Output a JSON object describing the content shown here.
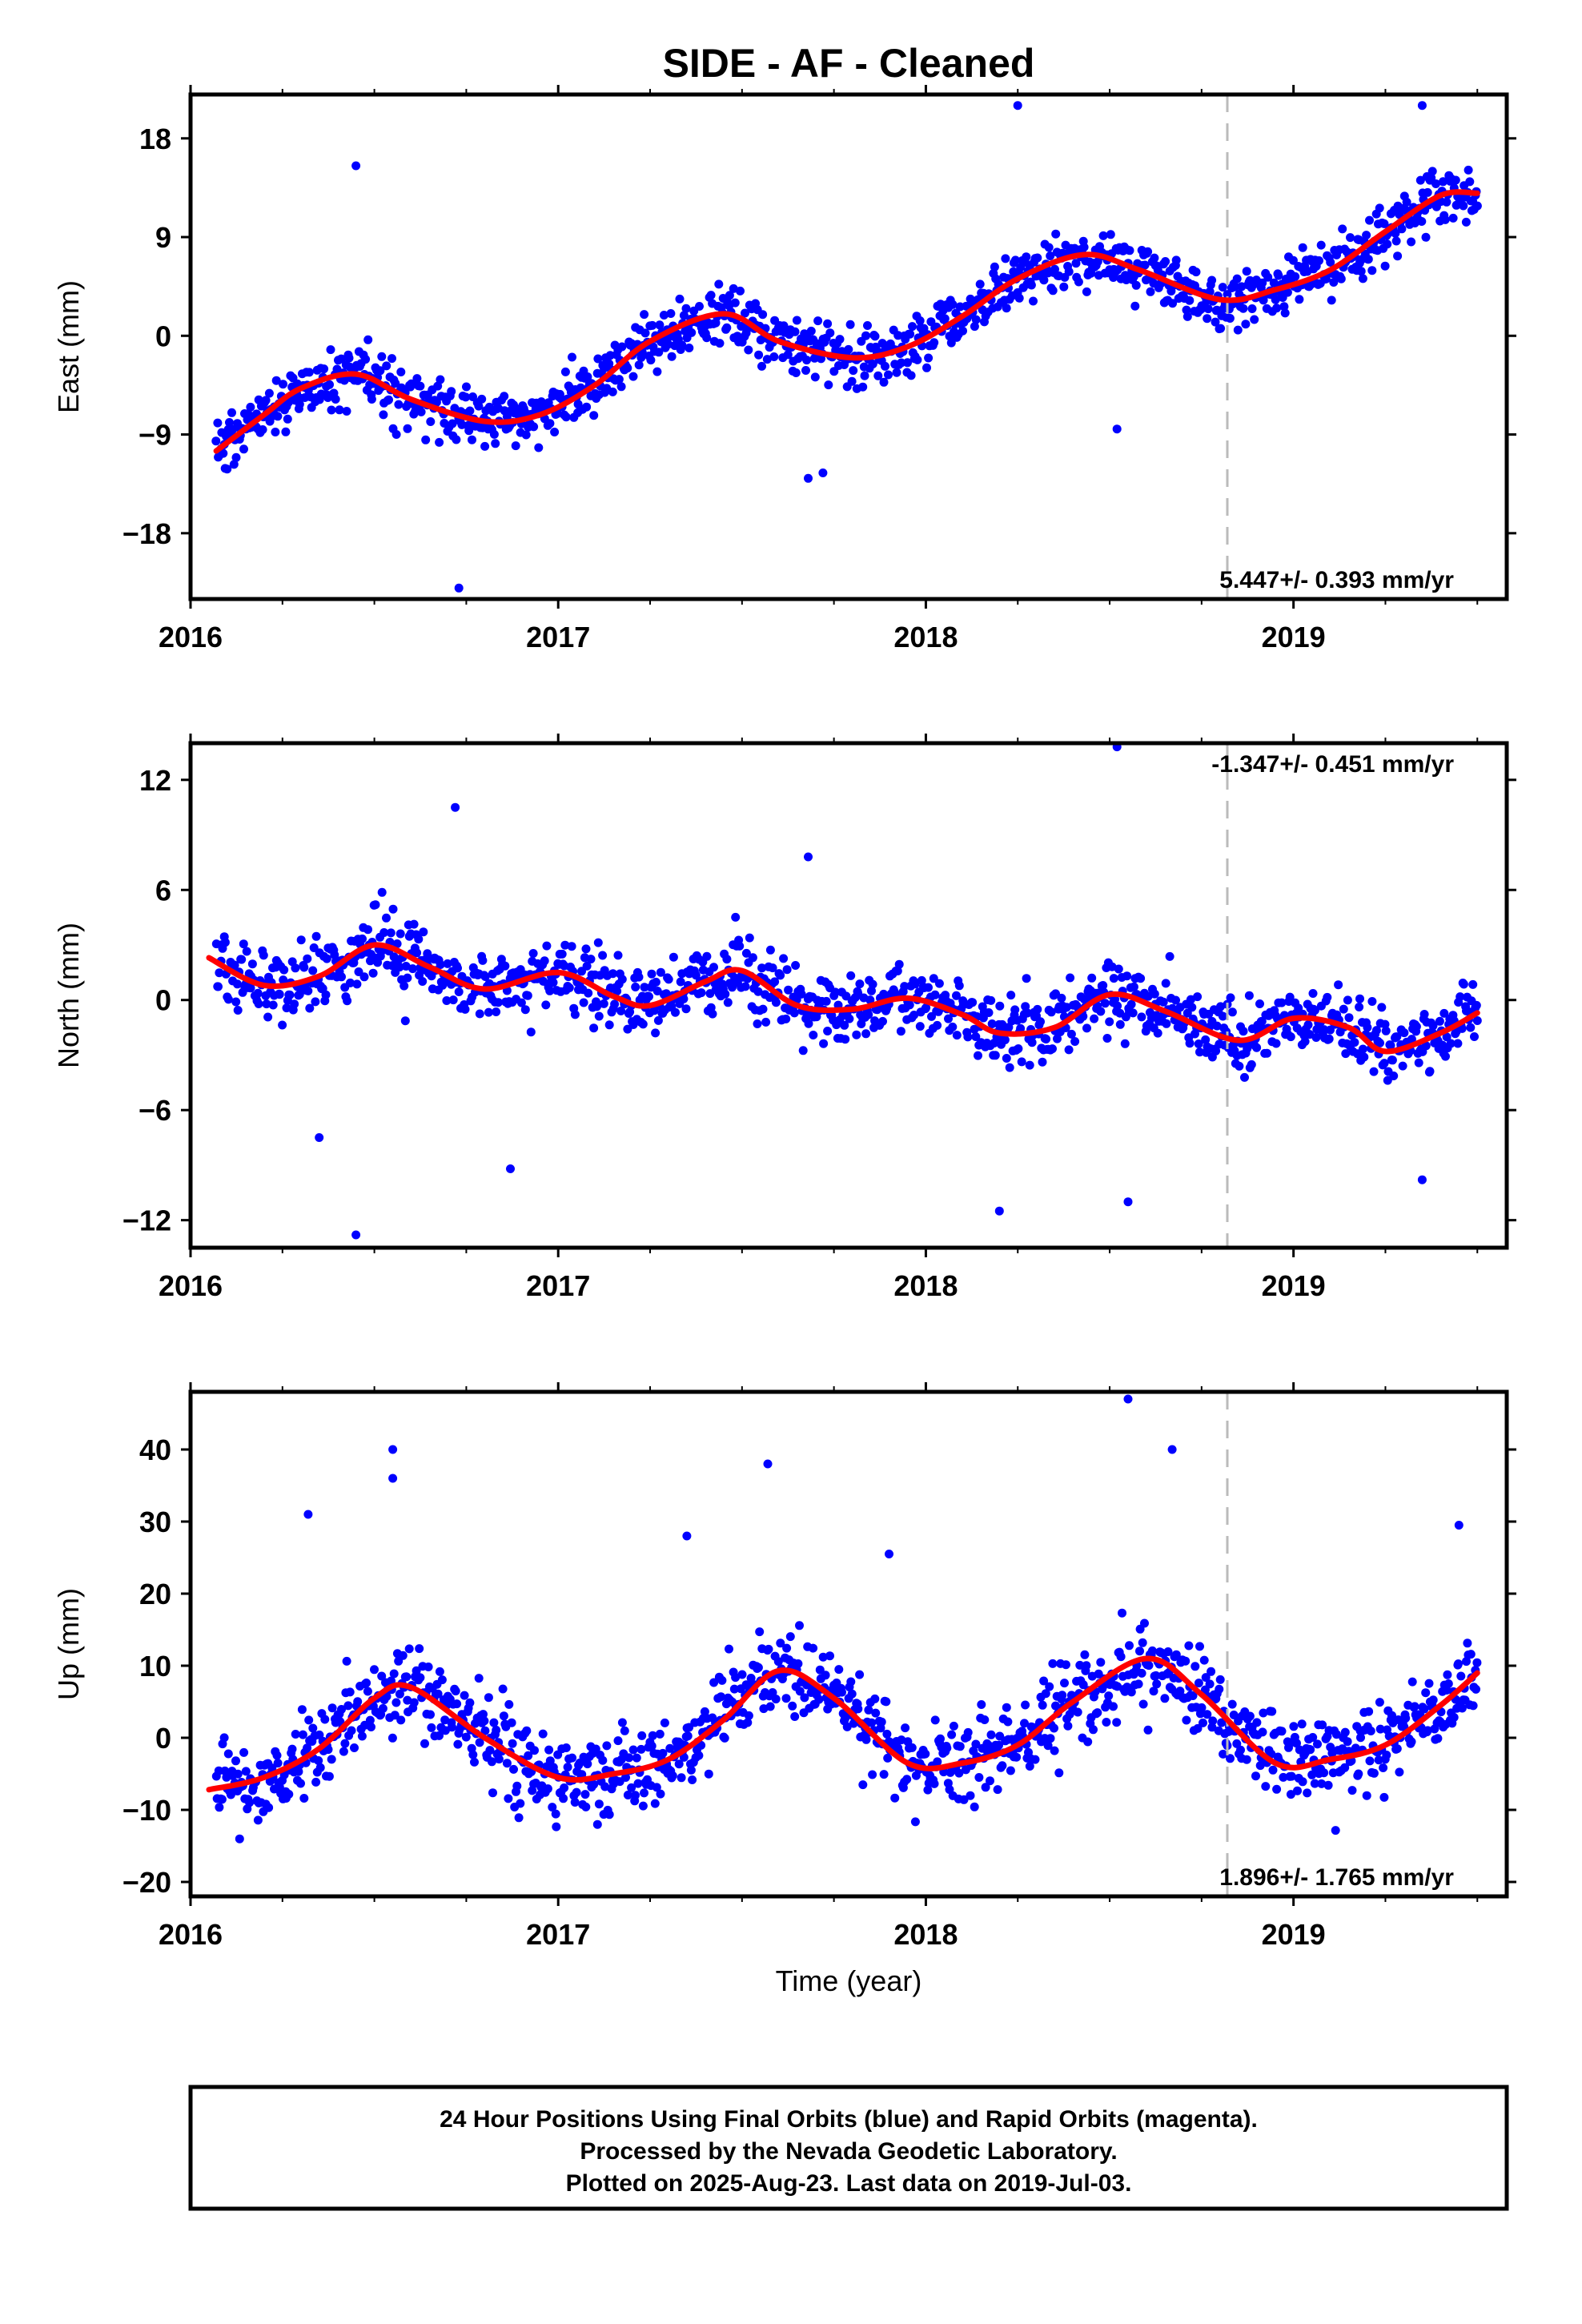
{
  "figure": {
    "title": "SIDE  - AF - Cleaned",
    "xlabel": "Time (year)",
    "x_ticks": [
      2016,
      2017,
      2018,
      2019
    ],
    "x_tick_labels": [
      "2016",
      "2017",
      "2018",
      "2019"
    ],
    "xlim": [
      2016.0,
      2019.58
    ],
    "marker_line_x": 2018.82,
    "colors": {
      "final": "#0000ff",
      "rapid": "#ff00ff",
      "fit": "#ff0000",
      "marker": "#bbbbbb"
    }
  },
  "chart_data": [
    {
      "type": "scatter",
      "name": "east",
      "ylabel": "East (mm)",
      "ylim": [
        -24,
        22
      ],
      "y_ticks": [
        -18,
        -9,
        0,
        9,
        18
      ],
      "y_tick_labels": [
        "−18",
        "−9",
        "0",
        "9",
        "18"
      ],
      "rate_text": "5.447+/- 0.393 mm/yr",
      "rate_position": "bottom-right",
      "fit": {
        "x": [
          2016.07,
          2016.2,
          2016.3,
          2016.45,
          2016.6,
          2016.8,
          2016.95,
          2017.1,
          2017.25,
          2017.45,
          2017.6,
          2017.8,
          2017.95,
          2018.1,
          2018.25,
          2018.43,
          2018.58,
          2018.8,
          2018.95,
          2019.1,
          2019.25,
          2019.4,
          2019.5
        ],
        "y": [
          -10.5,
          -7.2,
          -4.8,
          -3.5,
          -5.8,
          -7.8,
          -7.2,
          -4.5,
          -0.5,
          2.0,
          -0.5,
          -2.0,
          -1.0,
          1.8,
          5.2,
          7.4,
          6.0,
          3.3,
          4.2,
          6.0,
          9.5,
          12.8,
          13.0
        ]
      },
      "outliers": {
        "x": [
          2016.45,
          2016.73,
          2017.68,
          2017.72,
          2018.25,
          2018.52,
          2019.35
        ],
        "y": [
          15.5,
          -23,
          -13,
          -12.5,
          21,
          -8.5,
          21
        ]
      }
    },
    {
      "type": "scatter",
      "name": "north",
      "ylabel": "North (mm)",
      "ylim": [
        -13.5,
        14
      ],
      "y_ticks": [
        -12,
        -6,
        0,
        6,
        12
      ],
      "y_tick_labels": [
        "−12",
        "−6",
        "0",
        "6",
        "12"
      ],
      "rate_text": "-1.347+/- 0.451 mm/yr",
      "rate_position": "top-right",
      "fit": {
        "x": [
          2016.05,
          2016.2,
          2016.35,
          2016.5,
          2016.65,
          2016.8,
          2017.0,
          2017.15,
          2017.25,
          2017.4,
          2017.5,
          2017.65,
          2017.8,
          2017.95,
          2018.1,
          2018.2,
          2018.35,
          2018.5,
          2018.65,
          2018.85,
          2019.0,
          2019.15,
          2019.25,
          2019.4,
          2019.5
        ],
        "y": [
          2.3,
          0.8,
          1.3,
          3.0,
          1.8,
          0.6,
          1.5,
          0.2,
          -0.3,
          1.0,
          1.6,
          -0.3,
          -0.5,
          0.1,
          -0.8,
          -1.8,
          -1.5,
          0.3,
          -0.6,
          -2.2,
          -1.0,
          -1.5,
          -2.8,
          -1.8,
          -0.7
        ]
      },
      "outliers": {
        "x": [
          2016.35,
          2016.45,
          2016.72,
          2016.87,
          2017.68,
          2018.2,
          2018.52,
          2018.55,
          2019.35
        ],
        "y": [
          -7.5,
          -12.8,
          10.5,
          -9.2,
          7.8,
          -11.5,
          13.8,
          -11,
          -9.8
        ]
      }
    },
    {
      "type": "scatter",
      "name": "up",
      "ylabel": "Up (mm)",
      "ylim": [
        -22,
        48
      ],
      "y_ticks": [
        -20,
        -10,
        0,
        10,
        20,
        30,
        40
      ],
      "y_tick_labels": [
        "−20",
        "−10",
        "0",
        "10",
        "20",
        "30",
        "40"
      ],
      "rate_text": "1.896+/- 1.765 mm/yr",
      "rate_position": "bottom-right",
      "fit": {
        "x": [
          2016.05,
          2016.2,
          2016.35,
          2016.5,
          2016.6,
          2016.8,
          2017.0,
          2017.15,
          2017.3,
          2017.45,
          2017.6,
          2017.75,
          2017.95,
          2018.1,
          2018.25,
          2018.4,
          2018.6,
          2018.75,
          2018.95,
          2019.1,
          2019.25,
          2019.4,
          2019.5
        ],
        "y": [
          -7.2,
          -5.5,
          -1.5,
          5.5,
          7.0,
          0.0,
          -5.5,
          -5.0,
          -3.0,
          2.5,
          9.3,
          5.5,
          -3.5,
          -3.5,
          -1.0,
          5.0,
          11.0,
          6.0,
          -3.5,
          -3.0,
          -1.0,
          4.5,
          9.0
        ]
      },
      "outliers": {
        "x": [
          2016.32,
          2016.55,
          2016.55,
          2017.35,
          2017.57,
          2017.9,
          2018.55,
          2018.67,
          2019.45
        ],
        "y": [
          31,
          40,
          36,
          28,
          38,
          25.5,
          47,
          40,
          29.5
        ]
      }
    }
  ],
  "footer": {
    "line1": "24 Hour Positions Using Final Orbits (blue) and Rapid Orbits (magenta).",
    "line2": "Processed by the Nevada Geodetic Laboratory.",
    "line3": "Plotted on 2025-Aug-23. Last data on 2019-Jul-03."
  }
}
